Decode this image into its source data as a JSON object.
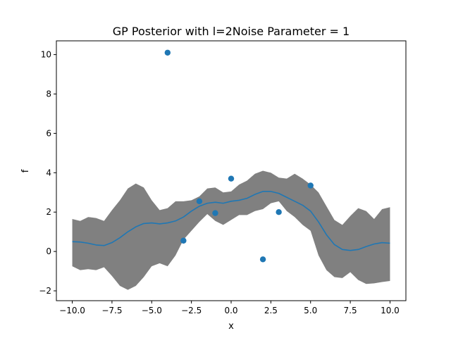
{
  "chart_data": {
    "type": "line",
    "title": "GP Posterior with l=2Noise Parameter = 1",
    "xlabel": "x",
    "ylabel": "f",
    "xlim": [
      -11.0,
      11.0
    ],
    "ylim": [
      -2.5,
      10.7
    ],
    "xticks": [
      "−10.0",
      "−7.5",
      "−5.0",
      "−2.5",
      "0.0",
      "2.5",
      "5.0",
      "7.5",
      "10.0"
    ],
    "yticks": [
      "−2",
      "0",
      "2",
      "4",
      "6",
      "8",
      "10"
    ],
    "grid": false,
    "colors": {
      "mean": "#1f77b4",
      "points": "#1f77b4",
      "band": "#808080"
    },
    "observations": {
      "x": [
        -4,
        -3,
        -2,
        -1,
        0,
        2,
        3,
        5
      ],
      "y": [
        10.1,
        0.55,
        2.55,
        1.95,
        3.7,
        -0.4,
        2.0,
        3.35
      ]
    },
    "band_x": [
      -10,
      -9.5,
      -9,
      -8.5,
      -8,
      -7.5,
      -7,
      -6.5,
      -6,
      -5.5,
      -5,
      -4.5,
      -4,
      -3.5,
      -3,
      -2.5,
      -2,
      -1.5,
      -1,
      -0.5,
      0,
      0.5,
      1,
      1.5,
      2,
      2.5,
      3,
      3.5,
      4,
      4.5,
      5,
      5.5,
      6,
      6.5,
      7,
      7.5,
      8,
      8.5,
      9,
      9.5,
      10
    ],
    "upper": [
      1.65,
      1.55,
      1.75,
      1.7,
      1.55,
      2.1,
      2.6,
      3.2,
      3.45,
      3.25,
      2.6,
      2.1,
      2.2,
      2.55,
      2.55,
      2.6,
      2.8,
      3.2,
      3.25,
      3.0,
      3.05,
      3.4,
      3.6,
      3.95,
      4.1,
      4.0,
      3.75,
      3.7,
      3.95,
      3.7,
      3.4,
      3.0,
      2.3,
      1.6,
      1.35,
      1.8,
      2.2,
      2.05,
      1.65,
      2.15,
      2.25
    ],
    "mean": [
      0.5,
      0.48,
      0.42,
      0.33,
      0.3,
      0.45,
      0.7,
      1.0,
      1.25,
      1.42,
      1.45,
      1.4,
      1.45,
      1.55,
      1.75,
      2.05,
      2.3,
      2.45,
      2.5,
      2.45,
      2.55,
      2.6,
      2.7,
      2.9,
      3.05,
      3.05,
      2.95,
      2.75,
      2.55,
      2.35,
      2.05,
      1.5,
      0.85,
      0.35,
      0.1,
      0.05,
      0.1,
      0.25,
      0.38,
      0.45,
      0.42
    ],
    "lower": [
      -0.75,
      -0.95,
      -0.9,
      -0.95,
      -0.8,
      -1.25,
      -1.75,
      -1.95,
      -1.75,
      -1.3,
      -0.75,
      -0.6,
      -0.75,
      -0.2,
      0.6,
      1.05,
      1.5,
      1.9,
      1.55,
      1.35,
      1.6,
      1.85,
      1.85,
      2.05,
      2.15,
      2.45,
      2.55,
      2.05,
      1.75,
      1.35,
      1.05,
      -0.2,
      -0.95,
      -1.3,
      -1.35,
      -1.05,
      -1.45,
      -1.65,
      -1.62,
      -1.55,
      -1.5
    ]
  }
}
